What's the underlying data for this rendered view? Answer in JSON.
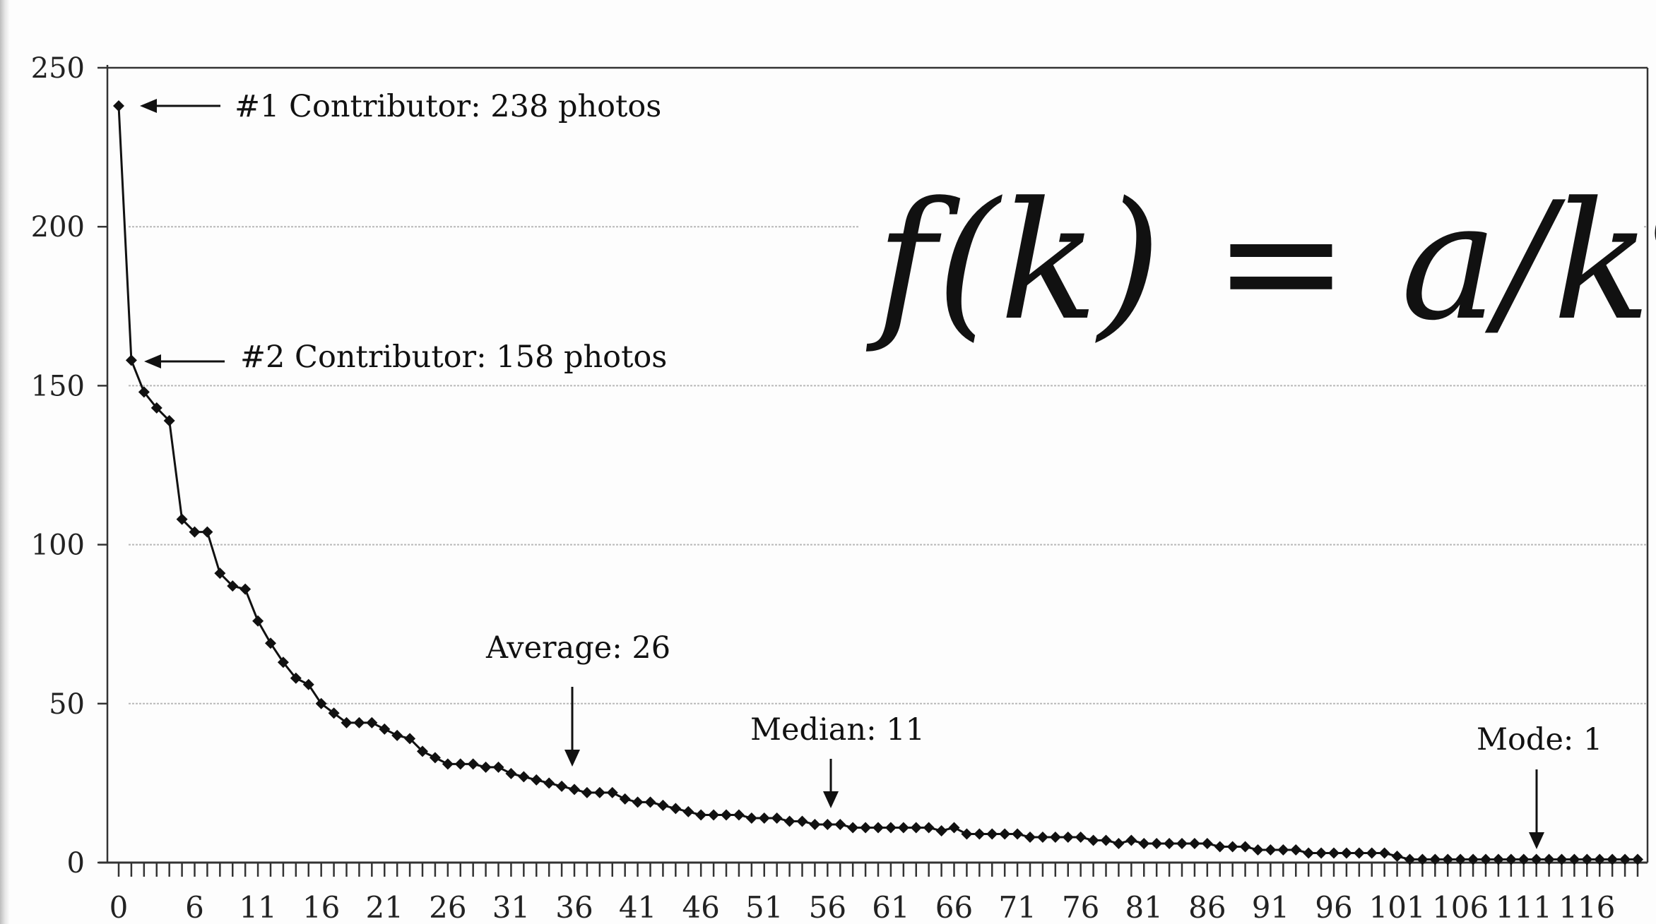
{
  "chart_data": {
    "type": "line",
    "title": "",
    "xlabel": "",
    "ylabel": "",
    "ylim": [
      0,
      250
    ],
    "xlim": [
      0,
      120
    ],
    "yticks": [
      0,
      50,
      100,
      150,
      200,
      250
    ],
    "ytick_labels": [
      "0",
      "50",
      "100",
      "150",
      "200",
      "250"
    ],
    "xticks": [
      0,
      6,
      11,
      16,
      21,
      26,
      31,
      36,
      41,
      46,
      51,
      56,
      61,
      66,
      71,
      76,
      81,
      86,
      91,
      96,
      101,
      106,
      111,
      116
    ],
    "xtick_labels": [
      "0",
      "6",
      "11",
      "16",
      "21",
      "26",
      "31",
      "36",
      "41",
      "46",
      "51",
      "56",
      "61",
      "66",
      "71",
      "76",
      "81",
      "86",
      "91",
      "96",
      "101",
      "106",
      "111",
      "116"
    ],
    "grid": true,
    "legend": "none",
    "series": [
      {
        "values": [
          238,
          158,
          148,
          143,
          139,
          108,
          104,
          104,
          91,
          87,
          86,
          76,
          69,
          63,
          58,
          56,
          50,
          47,
          44,
          44,
          44,
          42,
          40,
          39,
          35,
          33,
          31,
          31,
          31,
          30,
          30,
          28,
          27,
          26,
          25,
          24,
          23,
          22,
          22,
          22,
          20,
          19,
          19,
          18,
          17,
          16,
          15,
          15,
          15,
          15,
          14,
          14,
          14,
          13,
          13,
          12,
          12,
          12,
          11,
          11,
          11,
          11,
          11,
          11,
          11,
          10,
          11,
          9,
          9,
          9,
          9,
          9,
          8,
          8,
          8,
          8,
          8,
          7,
          7,
          6,
          7,
          6,
          6,
          6,
          6,
          6,
          6,
          5,
          5,
          5,
          4,
          4,
          4,
          4,
          3,
          3,
          3,
          3,
          3,
          3,
          3,
          2,
          1,
          1,
          1,
          1,
          1,
          1,
          1,
          1,
          1,
          1,
          1,
          1,
          1,
          1,
          1,
          1,
          1,
          1,
          1
        ]
      }
    ],
    "annotations": [
      {
        "text": "#1 Contributor: 238 photos",
        "x": 2,
        "y": 238
      },
      {
        "text": "#2 Contributor: 158 photos",
        "x": 3,
        "y": 158
      },
      {
        "text": "Average: 26",
        "x": 36,
        "y": 22
      },
      {
        "text": "Median: 11",
        "x": 56,
        "y": 11
      },
      {
        "text": "Mode: 1",
        "x": 111,
        "y": 1
      }
    ],
    "formula": {
      "lhs": "f(k) = a/k",
      "exponent": "c"
    },
    "colors": {
      "line": "#111111",
      "marker": "#111111",
      "grid": "#b8b8b8",
      "frame": "#333333"
    }
  }
}
